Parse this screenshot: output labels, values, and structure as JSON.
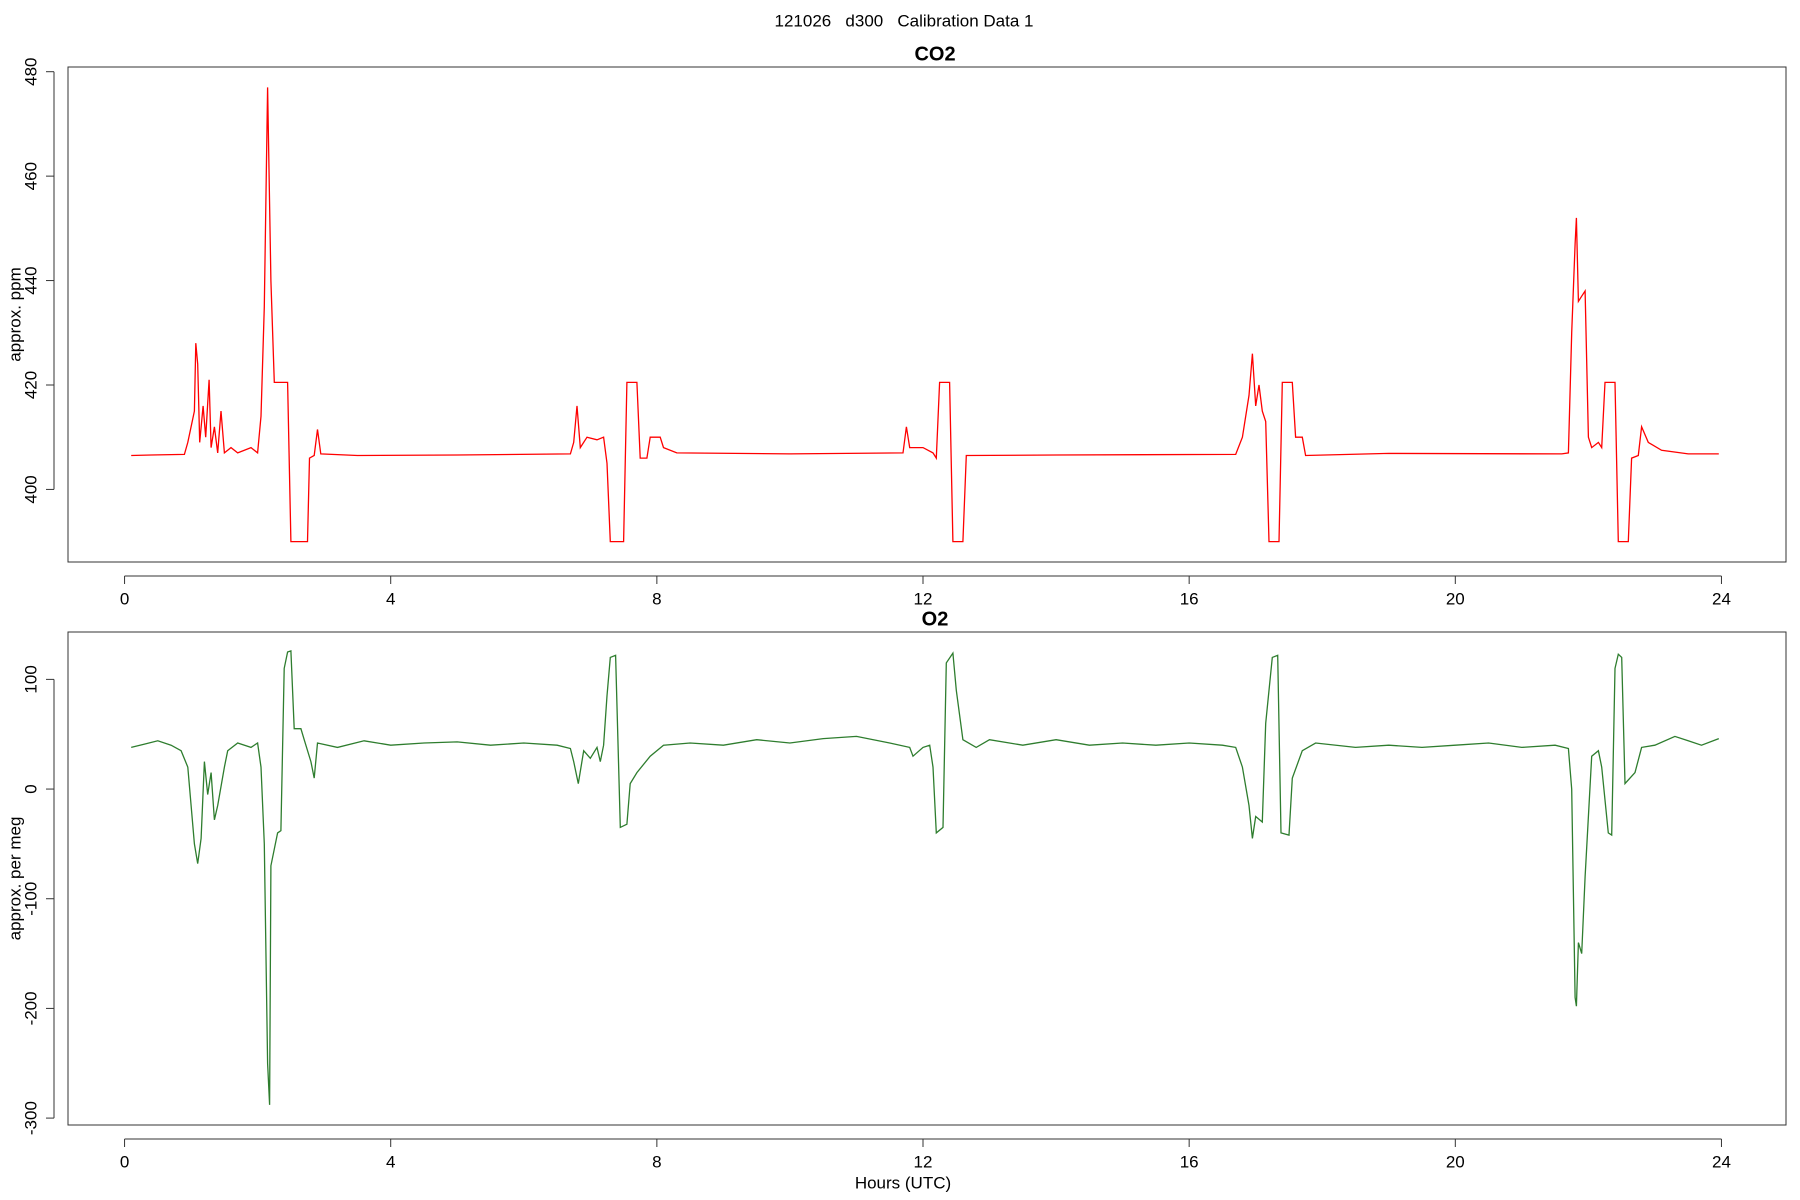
{
  "page_title": "121026   d300   Calibration Data 1",
  "chart_data": [
    {
      "type": "line",
      "title": "CO2",
      "y_label": "approx. ppm",
      "color": "#ff0000",
      "xlim": [
        -0.85,
        24.97
      ],
      "xticks": [
        0,
        4,
        8,
        12,
        16,
        20,
        24
      ],
      "ylim": [
        386.1,
        480.9
      ],
      "yticks": [
        400,
        420,
        440,
        460,
        480
      ],
      "x": [
        0.1,
        0.4,
        0.9,
        0.95,
        1.0,
        1.05,
        1.07,
        1.1,
        1.13,
        1.18,
        1.22,
        1.27,
        1.3,
        1.35,
        1.4,
        1.45,
        1.5,
        1.6,
        1.7,
        1.9,
        2.0,
        2.05,
        2.1,
        2.15,
        2.2,
        2.25,
        2.45,
        2.5,
        2.75,
        2.78,
        2.85,
        2.9,
        2.95,
        3.5,
        5.0,
        6.7,
        6.75,
        6.8,
        6.85,
        6.95,
        7.1,
        7.2,
        7.25,
        7.3,
        7.5,
        7.55,
        7.7,
        7.75,
        7.85,
        7.9,
        8.05,
        8.1,
        8.3,
        10.0,
        11.7,
        11.75,
        11.8,
        12.0,
        12.15,
        12.2,
        12.25,
        12.4,
        12.45,
        12.6,
        12.65,
        14.0,
        16.7,
        16.8,
        16.9,
        16.95,
        17.0,
        17.05,
        17.1,
        17.15,
        17.2,
        17.35,
        17.4,
        17.55,
        17.6,
        17.7,
        17.75,
        19.0,
        21.6,
        21.7,
        21.75,
        21.8,
        21.82,
        21.85,
        21.9,
        21.95,
        22.0,
        22.05,
        22.15,
        22.2,
        22.25,
        22.4,
        22.45,
        22.6,
        22.65,
        22.75,
        22.8,
        22.9,
        23.1,
        23.5,
        23.96
      ],
      "values": [
        406.5,
        406.6,
        406.7,
        409,
        412,
        415,
        428,
        424,
        409,
        416,
        410,
        421,
        408,
        412,
        407,
        415,
        407,
        408,
        407,
        408,
        407,
        414,
        435,
        477,
        440,
        420.5,
        420.5,
        390,
        390,
        406,
        406.5,
        411.5,
        406.8,
        406.5,
        406.6,
        406.8,
        409,
        416,
        408,
        410,
        409.5,
        410,
        405,
        390,
        390,
        420.5,
        420.5,
        406,
        406,
        410,
        410,
        408,
        407,
        406.8,
        407,
        412,
        408,
        408,
        407,
        406,
        420.5,
        420.5,
        390,
        390,
        406.5,
        406.6,
        406.7,
        410,
        418,
        426,
        416,
        420,
        415,
        413,
        390,
        390,
        420.5,
        420.5,
        410,
        410,
        406.5,
        406.9,
        406.8,
        407,
        430,
        447,
        452,
        436,
        437,
        438,
        410,
        408,
        409,
        408,
        420.5,
        420.5,
        390,
        390,
        406,
        406.5,
        412,
        409,
        407.5,
        406.8,
        406.8
      ]
    },
    {
      "type": "line",
      "title": "O2",
      "y_label": "approx. per meg",
      "x_label": "Hours (UTC)",
      "color": "#2e7d2e",
      "xlim": [
        -0.85,
        24.97
      ],
      "xticks": [
        0,
        4,
        8,
        12,
        16,
        20,
        24
      ],
      "ylim": [
        -306.3,
        143.2
      ],
      "yticks": [
        -300,
        -200,
        -100,
        0,
        100
      ],
      "x": [
        0.1,
        0.3,
        0.5,
        0.7,
        0.85,
        0.95,
        1.05,
        1.1,
        1.15,
        1.2,
        1.25,
        1.3,
        1.35,
        1.4,
        1.5,
        1.55,
        1.7,
        1.9,
        2.0,
        2.05,
        2.1,
        2.15,
        2.18,
        2.2,
        2.3,
        2.35,
        2.4,
        2.45,
        2.5,
        2.55,
        2.65,
        2.7,
        2.8,
        2.85,
        2.9,
        3.2,
        3.6,
        4.0,
        4.5,
        5.0,
        5.5,
        6.0,
        6.5,
        6.7,
        6.75,
        6.82,
        6.9,
        7.0,
        7.1,
        7.15,
        7.2,
        7.25,
        7.3,
        7.38,
        7.45,
        7.55,
        7.6,
        7.7,
        7.9,
        8.1,
        8.5,
        9.0,
        9.5,
        10.0,
        10.5,
        11.0,
        11.5,
        11.8,
        11.85,
        12.0,
        12.1,
        12.15,
        12.2,
        12.3,
        12.35,
        12.45,
        12.5,
        12.6,
        12.8,
        13.0,
        13.5,
        14.0,
        14.5,
        15.0,
        15.5,
        16.0,
        16.5,
        16.7,
        16.8,
        16.9,
        16.95,
        17.0,
        17.1,
        17.15,
        17.25,
        17.33,
        17.38,
        17.5,
        17.55,
        17.7,
        17.9,
        18.5,
        19.0,
        19.5,
        20.0,
        20.5,
        21.0,
        21.5,
        21.7,
        21.75,
        21.8,
        21.82,
        21.85,
        21.9,
        21.95,
        22.05,
        22.15,
        22.2,
        22.3,
        22.35,
        22.4,
        22.45,
        22.5,
        22.55,
        22.7,
        22.8,
        23.0,
        23.3,
        23.5,
        23.7,
        23.96
      ],
      "values": [
        38,
        41,
        44,
        40,
        35,
        20,
        -50,
        -68,
        -45,
        25,
        -5,
        15,
        -28,
        -15,
        20,
        35,
        42,
        38,
        42,
        20,
        -50,
        -250,
        -288,
        -70,
        -40,
        -38,
        110,
        125,
        126,
        55,
        55,
        45,
        25,
        10,
        42,
        38,
        44,
        40,
        42,
        43,
        40,
        42,
        40,
        37,
        25,
        5,
        35,
        28,
        38,
        25,
        40,
        85,
        120,
        122,
        -35,
        -32,
        5,
        15,
        30,
        40,
        42,
        40,
        45,
        42,
        46,
        48,
        42,
        38,
        30,
        38,
        40,
        20,
        -40,
        -35,
        115,
        124,
        90,
        45,
        38,
        45,
        40,
        45,
        40,
        42,
        40,
        42,
        40,
        38,
        20,
        -15,
        -45,
        -25,
        -30,
        60,
        120,
        122,
        -40,
        -42,
        10,
        35,
        42,
        38,
        40,
        38,
        40,
        42,
        38,
        40,
        37,
        0,
        -190,
        -198,
        -140,
        -150,
        -80,
        30,
        35,
        20,
        -40,
        -42,
        110,
        123,
        120,
        5,
        15,
        38,
        40,
        48,
        44,
        40,
        46
      ]
    }
  ]
}
